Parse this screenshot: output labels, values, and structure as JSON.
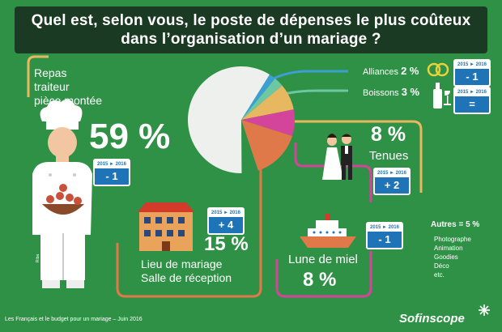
{
  "title": {
    "line1": "Quel est, selon vous, le poste de dépenses le plus coûteux",
    "line2": "dans l’organisation d’un mariage ?"
  },
  "chart_data": {
    "type": "pie",
    "slices": [
      {
        "label": "Repas traiteur pièce montée",
        "value": 59,
        "change": "- 1",
        "color": "#eef0ee"
      },
      {
        "label": "Alliances",
        "value": 2,
        "change": "- 1",
        "color": "#3b9fd1"
      },
      {
        "label": "Boissons",
        "value": 3,
        "change": "=",
        "color": "#6cc7a2"
      },
      {
        "label": "Tenues",
        "value": 8,
        "change": "+ 2",
        "color": "#e7b860"
      },
      {
        "label": "Lune de miel",
        "value": 8,
        "change": "- 1",
        "color": "#d2459b"
      },
      {
        "label": "Lieu de mariage Salle de réception",
        "value": 15,
        "change": "+ 4",
        "color": "#e07949"
      },
      {
        "label": "Autres",
        "value": 5,
        "color": "#2f9146"
      }
    ]
  },
  "labels": {
    "repas": [
      "Repas",
      "traiteur",
      "pièce montée"
    ],
    "repas_pct": "59 %",
    "alliances": "Alliances",
    "alliances_pct": "2 %",
    "boissons": "Boissons",
    "boissons_pct": "3 %",
    "tenues_pct": "8 %",
    "tenues": "Tenues",
    "lieu_pct": "15 %",
    "lieu": [
      "Lieu de mariage",
      "Salle de réception"
    ],
    "lune": "Lune de miel",
    "lune_pct": "8 %",
    "autres": "Autres = 5 %",
    "autres_items": [
      "Photographe",
      "Animation",
      "Goodies",
      "Déco",
      "etc."
    ]
  },
  "badges": {
    "year_range": "2015 ► 2016",
    "repas": "- 1",
    "alliances": "- 1",
    "boissons": "=",
    "tenues": "+ 2",
    "lieu": "+ 4",
    "lune": "- 1"
  },
  "footer": "Les Français et le budget pour un mariage – Juin 2016",
  "brand": "Sofinscope",
  "credit": "Riba",
  "colors": {
    "background": "#2f9146",
    "title_bar": "#1b3a23",
    "badge": "#1f74b8",
    "line_yellow": "#e7b860",
    "line_orange": "#e07949",
    "line_pink": "#d2459b"
  }
}
